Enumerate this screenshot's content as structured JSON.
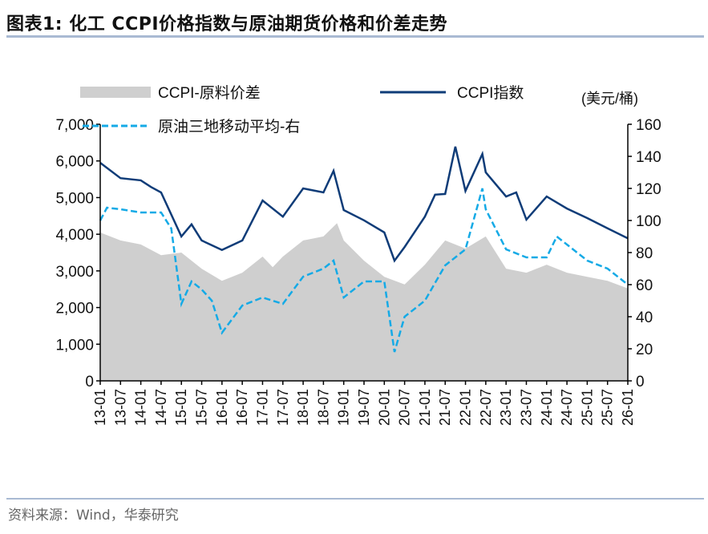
{
  "title": "图表1:  化工 CCPI价格指数与原油期货价格和价差走势",
  "source": "资料来源：Wind，华泰研究",
  "colors": {
    "spread": "#cfcfcf",
    "ccpi": "#0f3c78",
    "oil": "#15aae6"
  },
  "chart_data": {
    "type": "line",
    "unit_right": "(美元/桶)",
    "legend": [
      "CCPI-原料价差",
      "CCPI指数",
      "原油三地移动平均-右"
    ],
    "legend_placement": "top",
    "y_left": {
      "range": [
        0,
        7000
      ],
      "ticks": [
        "0",
        "1,000",
        "2,000",
        "3,000",
        "4,000",
        "5,000",
        "6,000",
        "7,000"
      ]
    },
    "y_right": {
      "range": [
        0,
        160
      ],
      "ticks": [
        "0",
        "20",
        "40",
        "60",
        "80",
        "100",
        "120",
        "140",
        "160"
      ]
    },
    "x_ticks": [
      "13-01",
      "13-07",
      "14-01",
      "14-07",
      "15-01",
      "15-07",
      "16-01",
      "16-07",
      "17-01",
      "17-07",
      "18-01",
      "18-07",
      "19-01",
      "19-07",
      "20-01",
      "20-07",
      "21-01",
      "21-07",
      "22-01",
      "22-07",
      "23-01",
      "23-07",
      "24-01",
      "24-07",
      "25-01",
      "25-07",
      "26-01"
    ],
    "series": [
      {
        "name": "CCPI-原料价差",
        "kind": "area",
        "axis": "left",
        "points": [
          [
            "2013-01",
            4050
          ],
          [
            "2013-07",
            3830
          ],
          [
            "2014-01",
            3720
          ],
          [
            "2014-07",
            3430
          ],
          [
            "2015-01",
            3500
          ],
          [
            "2015-07",
            3060
          ],
          [
            "2016-01",
            2730
          ],
          [
            "2016-07",
            2950
          ],
          [
            "2017-01",
            3390
          ],
          [
            "2017-04",
            3100
          ],
          [
            "2017-07",
            3390
          ],
          [
            "2018-01",
            3830
          ],
          [
            "2018-07",
            3940
          ],
          [
            "2018-11",
            4300
          ],
          [
            "2019-01",
            3830
          ],
          [
            "2019-07",
            3280
          ],
          [
            "2020-01",
            2840
          ],
          [
            "2020-07",
            2630
          ],
          [
            "2021-01",
            3170
          ],
          [
            "2021-07",
            3830
          ],
          [
            "2022-01",
            3610
          ],
          [
            "2022-07",
            3940
          ],
          [
            "2023-01",
            3060
          ],
          [
            "2023-07",
            2950
          ],
          [
            "2024-01",
            3170
          ],
          [
            "2024-07",
            2950
          ],
          [
            "2025-01",
            2840
          ],
          [
            "2025-07",
            2730
          ],
          [
            "2026-01",
            2520
          ]
        ]
      },
      {
        "name": "CCPI指数",
        "kind": "line",
        "axis": "left",
        "points": [
          [
            "2013-01",
            5950
          ],
          [
            "2013-07",
            5530
          ],
          [
            "2014-01",
            5470
          ],
          [
            "2014-04",
            5290
          ],
          [
            "2014-07",
            5140
          ],
          [
            "2015-01",
            3940
          ],
          [
            "2015-04",
            4270
          ],
          [
            "2015-07",
            3830
          ],
          [
            "2016-01",
            3570
          ],
          [
            "2016-07",
            3830
          ],
          [
            "2017-01",
            4920
          ],
          [
            "2017-07",
            4480
          ],
          [
            "2018-01",
            5250
          ],
          [
            "2018-07",
            5140
          ],
          [
            "2018-10",
            5730
          ],
          [
            "2019-01",
            4660
          ],
          [
            "2019-07",
            4380
          ],
          [
            "2020-01",
            4050
          ],
          [
            "2020-04",
            3280
          ],
          [
            "2020-07",
            3650
          ],
          [
            "2021-01",
            4480
          ],
          [
            "2021-04",
            5080
          ],
          [
            "2021-07",
            5100
          ],
          [
            "2021-10",
            6390
          ],
          [
            "2022-01",
            5180
          ],
          [
            "2022-06",
            6190
          ],
          [
            "2022-07",
            5690
          ],
          [
            "2023-01",
            5030
          ],
          [
            "2023-04",
            5140
          ],
          [
            "2023-07",
            4400
          ],
          [
            "2024-01",
            5030
          ],
          [
            "2024-07",
            4700
          ],
          [
            "2025-01",
            4440
          ],
          [
            "2025-07",
            4160
          ],
          [
            "2026-01",
            3890
          ]
        ]
      },
      {
        "name": "原油三地移动平均-右",
        "kind": "dashed",
        "axis": "right",
        "points": [
          [
            "2013-01",
            100
          ],
          [
            "2013-03",
            108
          ],
          [
            "2013-07",
            107
          ],
          [
            "2014-01",
            105
          ],
          [
            "2014-07",
            105
          ],
          [
            "2014-10",
            95
          ],
          [
            "2015-01",
            48
          ],
          [
            "2015-04",
            62
          ],
          [
            "2015-07",
            57
          ],
          [
            "2015-10",
            50
          ],
          [
            "2016-01",
            30
          ],
          [
            "2016-07",
            47
          ],
          [
            "2017-01",
            52
          ],
          [
            "2017-07",
            48
          ],
          [
            "2018-01",
            65
          ],
          [
            "2018-07",
            70
          ],
          [
            "2018-10",
            75
          ],
          [
            "2019-01",
            52
          ],
          [
            "2019-07",
            62
          ],
          [
            "2020-01",
            62
          ],
          [
            "2020-04",
            18
          ],
          [
            "2020-07",
            40
          ],
          [
            "2021-01",
            50
          ],
          [
            "2021-07",
            72
          ],
          [
            "2022-01",
            82
          ],
          [
            "2022-06",
            120
          ],
          [
            "2022-07",
            107
          ],
          [
            "2023-01",
            82
          ],
          [
            "2023-07",
            77
          ],
          [
            "2024-01",
            77
          ],
          [
            "2024-04",
            90
          ],
          [
            "2024-07",
            85
          ],
          [
            "2025-01",
            75
          ],
          [
            "2025-07",
            70
          ],
          [
            "2026-01",
            60
          ]
        ]
      }
    ]
  }
}
